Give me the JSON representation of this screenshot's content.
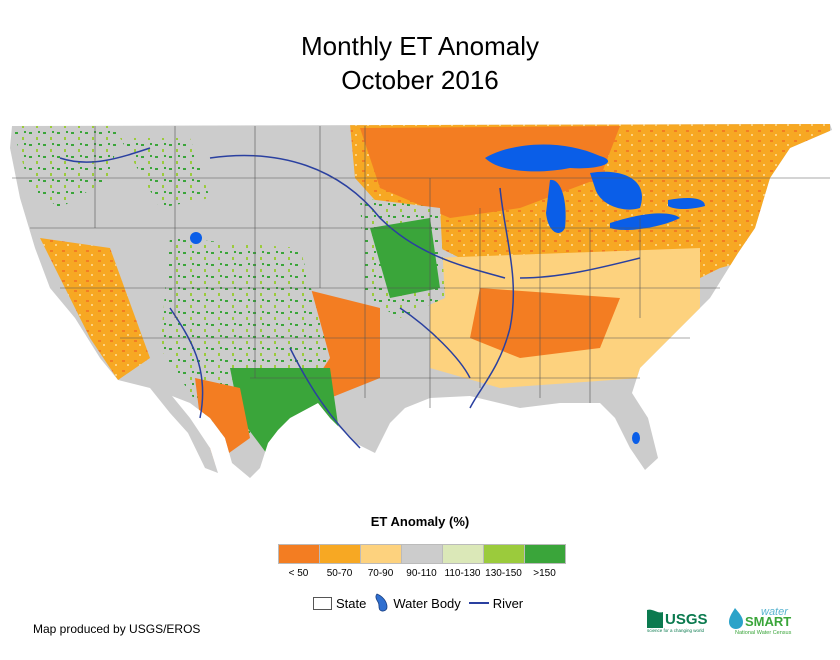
{
  "title": {
    "line1": "Monthly ET Anomaly",
    "line2": "October 2016"
  },
  "legend": {
    "title": "ET Anomaly (%)",
    "classes": [
      {
        "label": "< 50",
        "color": "#f37d22"
      },
      {
        "label": "50-70",
        "color": "#f7a823"
      },
      {
        "label": "70-90",
        "color": "#fdd27e"
      },
      {
        "label": "90-110",
        "color": "#cccccc"
      },
      {
        "label": "110-130",
        "color": "#dbe8b8"
      },
      {
        "label": "130-150",
        "color": "#9bcb3c"
      },
      {
        "label": ">150",
        "color": "#3aa53a"
      }
    ],
    "keys": {
      "state": "State",
      "water_body": "Water Body",
      "river": "River"
    }
  },
  "colors": {
    "water": "#0a5ee8",
    "river": "#2a40a0",
    "state_line": "#555555"
  },
  "credit": "Map produced by USGS/EROS",
  "logos": {
    "usgs": "USGS",
    "usgs_tagline": "science for a changing world",
    "ws_top": "water",
    "ws_main": "SMART",
    "ws_sub": "National Water Census"
  }
}
